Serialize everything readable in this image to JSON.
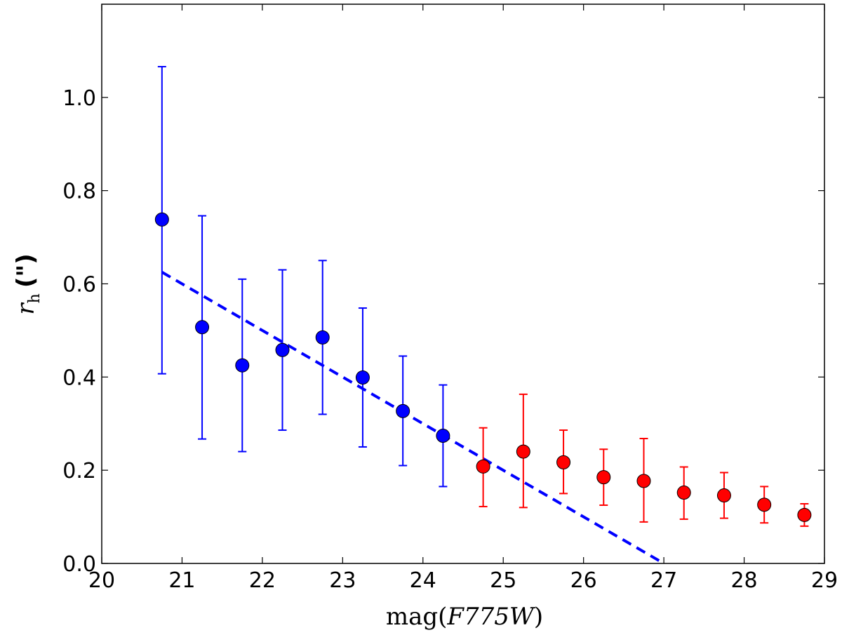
{
  "chart_data": {
    "type": "scatter",
    "xlabel_parts": {
      "pre": "mag(",
      "var": "F775W",
      "post": ")"
    },
    "ylabel_parts": {
      "var": "r",
      "sub": "h",
      "unit": "(\")"
    },
    "xlim": [
      20,
      29
    ],
    "ylim": [
      0.0,
      1.2
    ],
    "x_ticks": [
      20,
      21,
      22,
      23,
      24,
      25,
      26,
      27,
      28,
      29
    ],
    "y_ticks": [
      0.0,
      0.2,
      0.4,
      0.6,
      0.8,
      1.0
    ],
    "y_tick_labels": [
      "0.0",
      "0.2",
      "0.4",
      "0.6",
      "0.8",
      "1.0"
    ],
    "grid": false,
    "series": [
      {
        "color": "#0000ff",
        "points": [
          {
            "x": 20.75,
            "y": 0.738,
            "yerr_low": 0.407,
            "yerr_high": 1.066
          },
          {
            "x": 21.25,
            "y": 0.507,
            "yerr_low": 0.267,
            "yerr_high": 0.746
          },
          {
            "x": 21.75,
            "y": 0.425,
            "yerr_low": 0.24,
            "yerr_high": 0.61
          },
          {
            "x": 22.25,
            "y": 0.458,
            "yerr_low": 0.286,
            "yerr_high": 0.63
          },
          {
            "x": 22.75,
            "y": 0.485,
            "yerr_low": 0.32,
            "yerr_high": 0.65
          },
          {
            "x": 23.25,
            "y": 0.399,
            "yerr_low": 0.25,
            "yerr_high": 0.548
          },
          {
            "x": 23.75,
            "y": 0.327,
            "yerr_low": 0.21,
            "yerr_high": 0.445
          },
          {
            "x": 24.25,
            "y": 0.274,
            "yerr_low": 0.165,
            "yerr_high": 0.383
          }
        ]
      },
      {
        "color": "#ff0000",
        "points": [
          {
            "x": 24.75,
            "y": 0.208,
            "yerr_low": 0.122,
            "yerr_high": 0.291
          },
          {
            "x": 25.25,
            "y": 0.24,
            "yerr_low": 0.12,
            "yerr_high": 0.363
          },
          {
            "x": 25.75,
            "y": 0.217,
            "yerr_low": 0.15,
            "yerr_high": 0.286
          },
          {
            "x": 26.25,
            "y": 0.185,
            "yerr_low": 0.125,
            "yerr_high": 0.245
          },
          {
            "x": 26.75,
            "y": 0.177,
            "yerr_low": 0.089,
            "yerr_high": 0.268
          },
          {
            "x": 27.25,
            "y": 0.152,
            "yerr_low": 0.095,
            "yerr_high": 0.207
          },
          {
            "x": 27.75,
            "y": 0.146,
            "yerr_low": 0.097,
            "yerr_high": 0.195
          },
          {
            "x": 28.25,
            "y": 0.126,
            "yerr_low": 0.087,
            "yerr_high": 0.165
          },
          {
            "x": 28.75,
            "y": 0.104,
            "yerr_low": 0.08,
            "yerr_high": 0.128
          }
        ]
      }
    ],
    "fit_line": {
      "color": "#0000ff",
      "style": "dashed",
      "start": {
        "x": 20.75,
        "y": 0.625
      },
      "end": {
        "x": 26.95,
        "y": 0.005
      }
    }
  }
}
